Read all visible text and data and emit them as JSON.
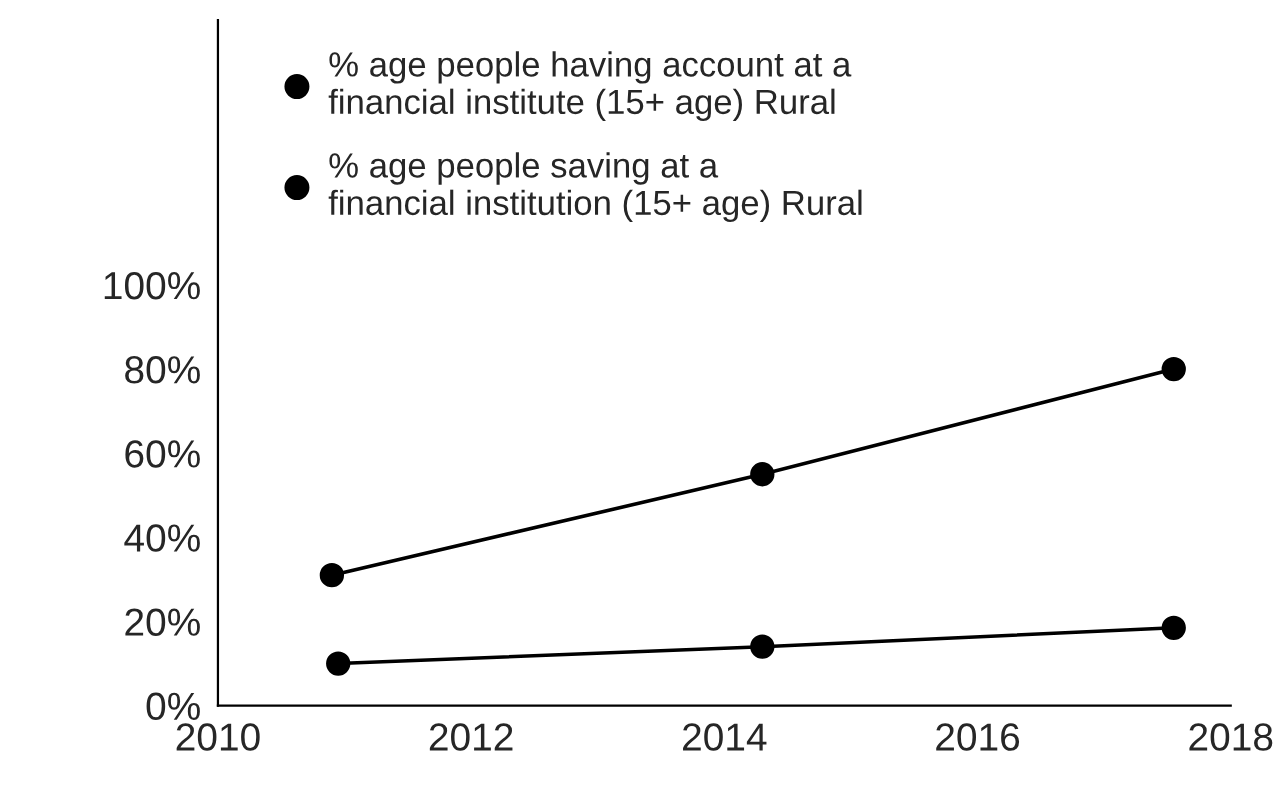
{
  "chart_data": {
    "type": "line",
    "marker": "circle",
    "line_style": "solid",
    "legend": "top left",
    "grid": false,
    "xlim": [
      2010,
      2018
    ],
    "xticks": [
      2010,
      2012,
      2014,
      2016,
      2018
    ],
    "ylim": [
      0,
      163
    ],
    "yticks": [
      {
        "value": 0,
        "label": "0%"
      },
      {
        "value": 20,
        "label": "20%"
      },
      {
        "value": 40,
        "label": "40%"
      },
      {
        "value": 60,
        "label": "60%"
      },
      {
        "value": 80,
        "label": "80%"
      },
      {
        "value": 100,
        "label": "100%"
      }
    ],
    "series": [
      {
        "name": "% age people having account at a\nfinancial institute (15+ age) Rural",
        "color": "#000000",
        "x": [
          2010.9,
          2014.3,
          2017.55
        ],
        "values": [
          31,
          55,
          80
        ]
      },
      {
        "name": "% age people saving at a\nfinancial institution (15+ age) Rural",
        "color": "#000000",
        "x": [
          2010.95,
          2014.3,
          2017.55
        ],
        "values": [
          10,
          14,
          18.5
        ]
      }
    ]
  }
}
